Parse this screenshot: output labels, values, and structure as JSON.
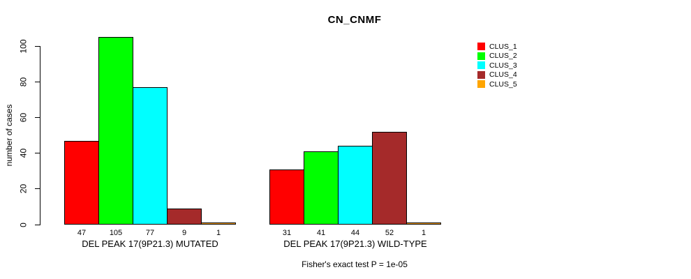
{
  "chart_data": {
    "type": "bar",
    "title": "CN_CNMF",
    "ylabel": "number of cases",
    "ylim": [
      0,
      100
    ],
    "yticks": [
      0,
      20,
      40,
      60,
      80,
      100
    ],
    "grid": false,
    "legend_position": "right",
    "bar_border_color": "#000000",
    "series": [
      {
        "name": "CLUS_1",
        "color": "#ff0000"
      },
      {
        "name": "CLUS_2",
        "color": "#00ff00"
      },
      {
        "name": "CLUS_3",
        "color": "#00ffff"
      },
      {
        "name": "CLUS_4",
        "color": "#a52a2a"
      },
      {
        "name": "CLUS_5",
        "color": "#ffa500"
      }
    ],
    "groups": [
      {
        "label": "DEL PEAK 17(9P21.3) MUTATED",
        "values": [
          47,
          105,
          77,
          9,
          1
        ]
      },
      {
        "label": "DEL PEAK 17(9P21.3) WILD-TYPE",
        "values": [
          31,
          41,
          44,
          52,
          1
        ]
      }
    ],
    "footnote": "Fisher's exact test P = 1e-05"
  }
}
